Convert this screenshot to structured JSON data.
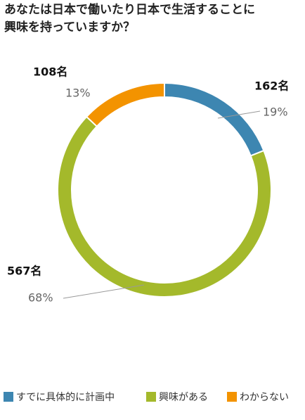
{
  "chart_data": {
    "type": "donut",
    "title": [
      "あなたは日本で働いたり日本で生活することに",
      "興味を持っていますか？"
    ],
    "categories": [
      "すでに具体的に計画中",
      "興味がある",
      "わからない"
    ],
    "values": [
      19,
      68,
      13
    ],
    "value_labels": [
      "19%",
      "68%",
      "13%"
    ],
    "count_labels": [
      "162名",
      "567名",
      "108名"
    ],
    "colors": [
      "#3d86b1",
      "#a4b92b",
      "#f39300"
    ]
  }
}
